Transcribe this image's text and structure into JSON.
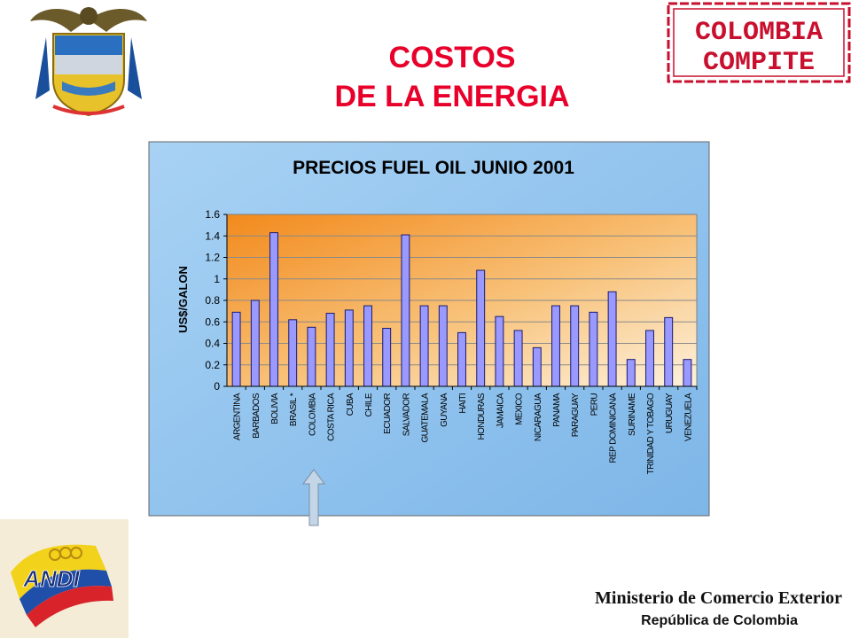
{
  "slide": {
    "title_line1": "COSTOS",
    "title_line2": "DE LA ENERGIA"
  },
  "stamp": {
    "line1": "COLOMBIA",
    "line2": "COMPITE",
    "color": "#c8102e"
  },
  "andi_logo": {
    "text": "ANDI"
  },
  "footer": {
    "ministry": "Ministerio de Comercio Exterior",
    "country": "República de Colombia"
  },
  "chart_data": {
    "type": "bar",
    "title": "PRECIOS FUEL OIL JUNIO 2001",
    "ylabel": "US$/GALON",
    "xlabel": "",
    "ylim": [
      0,
      1.6
    ],
    "yticks": [
      "0",
      "0.2",
      "0.4",
      "0.6",
      "0.8",
      "1",
      "1.2",
      "1.4",
      "1.6"
    ],
    "grid": true,
    "bar_color": "#9999ff",
    "categories": [
      "ARGENTINA",
      "BARBADOS",
      "BOLIVIA",
      "BRASIL *",
      "COLOMBIA",
      "COSTA RICA",
      "CUBA",
      "CHILE",
      "ECUADOR",
      "SALVADOR",
      "GUATEMALA",
      "GUYANA",
      "HAITI",
      "HONDURAS",
      "JAMAICA",
      "MEXICO",
      "NICARAGUA",
      "PANAMA",
      "PARAGUAY",
      "PERU",
      "REP DOMINICANA",
      "SURINAME",
      "TRINIDAD Y TOBAGO",
      "URUGUAY",
      "VENEZUELA"
    ],
    "values": [
      0.69,
      0.8,
      1.43,
      0.62,
      0.55,
      0.68,
      0.71,
      0.75,
      0.54,
      1.41,
      0.75,
      0.75,
      0.5,
      1.08,
      0.65,
      0.52,
      0.36,
      0.75,
      0.75,
      0.69,
      0.88,
      0.25,
      0.52,
      0.64,
      0.25
    ],
    "highlighted_category": "COLOMBIA"
  }
}
